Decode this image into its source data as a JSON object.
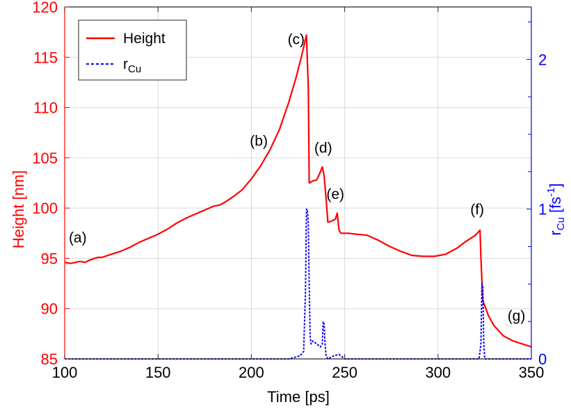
{
  "chart_data": {
    "type": "line",
    "title": "",
    "xlabel": "Time [ps]",
    "ylabel_left": "Height [nm]",
    "ylabel_right": "r_Cu [fs^-1]",
    "ylabel_right_parts": {
      "base": "r",
      "sub": "Cu",
      "rest": " [fs",
      "sup": "-1",
      "close": "]"
    },
    "xlim": [
      100,
      350
    ],
    "ylim_left": [
      85,
      120
    ],
    "ylim_right": [
      0,
      2.35
    ],
    "grid": true,
    "legend_placement": "top-left",
    "x_ticks": [
      100,
      150,
      200,
      250,
      300,
      350
    ],
    "y_ticks_left": [
      85,
      90,
      95,
      100,
      105,
      110,
      115,
      120
    ],
    "y_ticks_right": [
      0,
      1,
      2
    ],
    "colors": {
      "height": "#ff0000",
      "rcu": "#0000ff",
      "grid": "#d9d9d9",
      "frame": "#262626"
    },
    "series": [
      {
        "name": "Height",
        "axis": "left",
        "style": "solid",
        "color": "#ff0000",
        "points": [
          [
            100,
            94.6
          ],
          [
            103,
            94.5
          ],
          [
            106,
            94.6
          ],
          [
            108,
            94.7
          ],
          [
            111,
            94.6
          ],
          [
            113,
            94.8
          ],
          [
            116,
            95.0
          ],
          [
            118,
            95.1
          ],
          [
            120,
            95.1
          ],
          [
            125,
            95.4
          ],
          [
            130,
            95.7
          ],
          [
            135,
            96.1
          ],
          [
            140,
            96.6
          ],
          [
            145,
            97.0
          ],
          [
            150,
            97.4
          ],
          [
            155,
            97.9
          ],
          [
            160,
            98.5
          ],
          [
            165,
            99.0
          ],
          [
            170,
            99.4
          ],
          [
            175,
            99.8
          ],
          [
            180,
            100.2
          ],
          [
            183,
            100.3
          ],
          [
            186,
            100.6
          ],
          [
            190,
            101.1
          ],
          [
            195,
            101.8
          ],
          [
            200,
            102.9
          ],
          [
            205,
            104.2
          ],
          [
            210,
            105.8
          ],
          [
            215,
            107.8
          ],
          [
            220,
            110.5
          ],
          [
            224,
            113.0
          ],
          [
            227,
            115.2
          ],
          [
            229.5,
            117.2
          ],
          [
            230.5,
            112.0
          ],
          [
            231,
            102.5
          ],
          [
            233,
            102.7
          ],
          [
            235,
            102.8
          ],
          [
            237,
            103.6
          ],
          [
            238,
            104.1
          ],
          [
            239,
            103.2
          ],
          [
            240,
            101.0
          ],
          [
            241,
            98.6
          ],
          [
            243,
            98.7
          ],
          [
            245,
            98.9
          ],
          [
            246,
            99.5
          ],
          [
            247,
            97.8
          ],
          [
            248,
            97.5
          ],
          [
            252,
            97.5
          ],
          [
            256,
            97.4
          ],
          [
            262,
            97.3
          ],
          [
            268,
            96.8
          ],
          [
            274,
            96.2
          ],
          [
            280,
            95.7
          ],
          [
            286,
            95.3
          ],
          [
            292,
            95.2
          ],
          [
            298,
            95.2
          ],
          [
            304,
            95.4
          ],
          [
            310,
            96.0
          ],
          [
            315,
            96.7
          ],
          [
            320,
            97.3
          ],
          [
            322.5,
            97.8
          ],
          [
            323,
            95.0
          ],
          [
            324,
            90.8
          ],
          [
            327,
            89.3
          ],
          [
            330,
            88.3
          ],
          [
            335,
            87.3
          ],
          [
            340,
            86.8
          ],
          [
            345,
            86.5
          ],
          [
            350,
            86.2
          ]
        ]
      },
      {
        "name": "r_Cu",
        "axis": "right",
        "style": "dashed",
        "color": "#0000ff",
        "points": [
          [
            100,
            0.0
          ],
          [
            220,
            0.0
          ],
          [
            226,
            0.02
          ],
          [
            228,
            0.05
          ],
          [
            229,
            0.45
          ],
          [
            229.5,
            1.0
          ],
          [
            230,
            1.0
          ],
          [
            230.5,
            0.9
          ],
          [
            231,
            0.5
          ],
          [
            231.5,
            0.15
          ],
          [
            232,
            0.1
          ],
          [
            233,
            0.12
          ],
          [
            234,
            0.11
          ],
          [
            235,
            0.1
          ],
          [
            236,
            0.09
          ],
          [
            237,
            0.08
          ],
          [
            238,
            0.1
          ],
          [
            238.5,
            0.25
          ],
          [
            239,
            0.23
          ],
          [
            239.5,
            0.1
          ],
          [
            240,
            0.02
          ],
          [
            241,
            0.0
          ],
          [
            244,
            0.02
          ],
          [
            247,
            0.03
          ],
          [
            250,
            0.0
          ],
          [
            322,
            0.0
          ],
          [
            323,
            0.1
          ],
          [
            323.5,
            0.5
          ],
          [
            324,
            0.48
          ],
          [
            324.5,
            0.1
          ],
          [
            325,
            0.0
          ],
          [
            350,
            0.0
          ]
        ]
      }
    ],
    "legend": [
      {
        "label": "Height",
        "style": "solid",
        "color": "#ff0000"
      },
      {
        "label_base": "r",
        "label_sub": "Cu",
        "style": "dashed",
        "color": "#0000ff"
      }
    ],
    "annotations": [
      {
        "text": "(a)",
        "x": 107,
        "y": 96.6
      },
      {
        "text": "(b)",
        "x": 204,
        "y": 106.2
      },
      {
        "text": "(c)",
        "x": 224,
        "y": 116.3
      },
      {
        "text": "(d)",
        "x": 238.5,
        "y": 105.5
      },
      {
        "text": "(e)",
        "x": 245,
        "y": 100.9
      },
      {
        "text": "(f)",
        "x": 321,
        "y": 99.4
      },
      {
        "text": "(g)",
        "x": 342,
        "y": 88.8
      }
    ]
  }
}
